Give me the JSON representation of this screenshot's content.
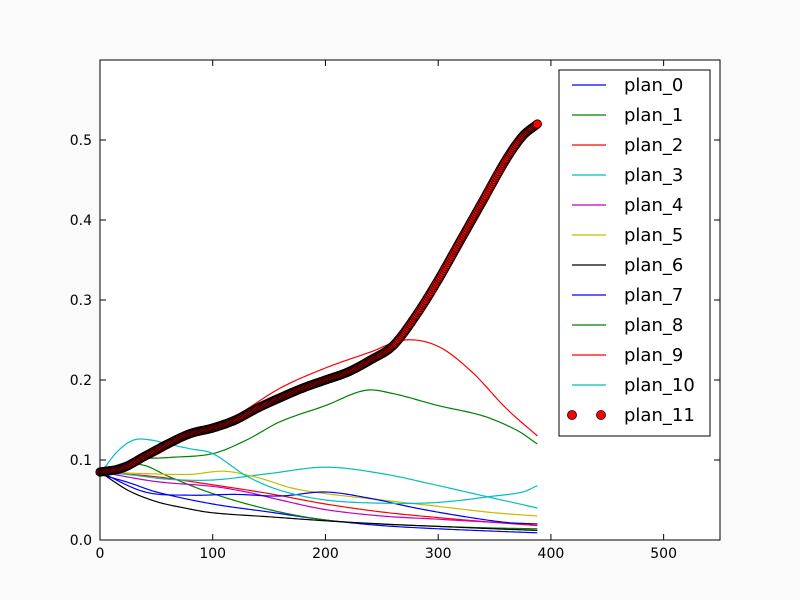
{
  "chart_data": {
    "type": "line",
    "title": "",
    "xlabel": "",
    "ylabel": "",
    "xlim": [
      0,
      550
    ],
    "ylim": [
      0,
      0.6
    ],
    "x_ticks": [
      0,
      100,
      200,
      300,
      400,
      500
    ],
    "x_tick_labels": [
      "0",
      "100",
      "200",
      "300",
      "400",
      "500"
    ],
    "y_ticks": [
      0,
      0.1,
      0.2,
      0.3,
      0.4,
      0.5
    ],
    "y_tick_labels": [
      "0.0",
      "0.1",
      "0.2",
      "0.3",
      "0.4",
      "0.5"
    ],
    "grid": false,
    "legend_position": "top-right",
    "series": [
      {
        "name": "plan_0",
        "color": "#0000ff",
        "style": "line",
        "points": [
          [
            0,
            0.082
          ],
          [
            25,
            0.072
          ],
          [
            50,
            0.06
          ],
          [
            100,
            0.045
          ],
          [
            150,
            0.035
          ],
          [
            200,
            0.025
          ],
          [
            250,
            0.018
          ],
          [
            300,
            0.014
          ],
          [
            350,
            0.011
          ],
          [
            388,
            0.009
          ]
        ]
      },
      {
        "name": "plan_1",
        "color": "#008000",
        "style": "line",
        "points": [
          [
            0,
            0.085
          ],
          [
            20,
            0.095
          ],
          [
            40,
            0.093
          ],
          [
            60,
            0.08
          ],
          [
            100,
            0.058
          ],
          [
            150,
            0.038
          ],
          [
            200,
            0.025
          ],
          [
            250,
            0.02
          ],
          [
            300,
            0.017
          ],
          [
            350,
            0.015
          ],
          [
            388,
            0.014
          ]
        ]
      },
      {
        "name": "plan_2",
        "color": "#ff0000",
        "style": "line",
        "points": [
          [
            0,
            0.085
          ],
          [
            50,
            0.079
          ],
          [
            100,
            0.069
          ],
          [
            150,
            0.058
          ],
          [
            200,
            0.045
          ],
          [
            250,
            0.035
          ],
          [
            300,
            0.028
          ],
          [
            350,
            0.022
          ],
          [
            388,
            0.018
          ]
        ]
      },
      {
        "name": "plan_3",
        "color": "#00bfbf",
        "style": "line",
        "points": [
          [
            0,
            0.085
          ],
          [
            30,
            0.081
          ],
          [
            60,
            0.076
          ],
          [
            100,
            0.075
          ],
          [
            150,
            0.083
          ],
          [
            200,
            0.091
          ],
          [
            250,
            0.083
          ],
          [
            300,
            0.068
          ],
          [
            350,
            0.052
          ],
          [
            388,
            0.04
          ]
        ]
      },
      {
        "name": "plan_4",
        "color": "#bf00bf",
        "style": "line",
        "points": [
          [
            0,
            0.085
          ],
          [
            50,
            0.073
          ],
          [
            100,
            0.067
          ],
          [
            130,
            0.06
          ],
          [
            160,
            0.05
          ],
          [
            200,
            0.038
          ],
          [
            250,
            0.03
          ],
          [
            300,
            0.026
          ],
          [
            350,
            0.022
          ],
          [
            388,
            0.02
          ]
        ]
      },
      {
        "name": "plan_5",
        "color": "#bfbf00",
        "style": "line",
        "points": [
          [
            0,
            0.085
          ],
          [
            40,
            0.083
          ],
          [
            80,
            0.082
          ],
          [
            110,
            0.086
          ],
          [
            140,
            0.078
          ],
          [
            170,
            0.065
          ],
          [
            200,
            0.058
          ],
          [
            250,
            0.05
          ],
          [
            300,
            0.042
          ],
          [
            350,
            0.034
          ],
          [
            388,
            0.03
          ]
        ]
      },
      {
        "name": "plan_6",
        "color": "#000000",
        "style": "line",
        "points": [
          [
            0,
            0.085
          ],
          [
            25,
            0.062
          ],
          [
            50,
            0.048
          ],
          [
            75,
            0.04
          ],
          [
            100,
            0.034
          ],
          [
            150,
            0.029
          ],
          [
            200,
            0.024
          ],
          [
            250,
            0.02
          ],
          [
            300,
            0.017
          ],
          [
            350,
            0.014
          ],
          [
            388,
            0.012
          ]
        ]
      },
      {
        "name": "plan_7",
        "color": "#0000ff",
        "style": "line",
        "points": [
          [
            0,
            0.085
          ],
          [
            40,
            0.06
          ],
          [
            80,
            0.056
          ],
          [
            120,
            0.057
          ],
          [
            160,
            0.055
          ],
          [
            200,
            0.06
          ],
          [
            240,
            0.052
          ],
          [
            280,
            0.04
          ],
          [
            320,
            0.03
          ],
          [
            360,
            0.022
          ],
          [
            388,
            0.02
          ]
        ]
      },
      {
        "name": "plan_8",
        "color": "#008000",
        "style": "line",
        "points": [
          [
            0,
            0.085
          ],
          [
            30,
            0.1
          ],
          [
            60,
            0.103
          ],
          [
            100,
            0.108
          ],
          [
            130,
            0.125
          ],
          [
            160,
            0.148
          ],
          [
            200,
            0.168
          ],
          [
            235,
            0.187
          ],
          [
            260,
            0.183
          ],
          [
            300,
            0.168
          ],
          [
            340,
            0.155
          ],
          [
            370,
            0.137
          ],
          [
            388,
            0.12
          ]
        ]
      },
      {
        "name": "plan_9",
        "color": "#ff0000",
        "style": "line",
        "points": [
          [
            0,
            0.085
          ],
          [
            40,
            0.1
          ],
          [
            80,
            0.13
          ],
          [
            120,
            0.155
          ],
          [
            160,
            0.19
          ],
          [
            200,
            0.215
          ],
          [
            240,
            0.235
          ],
          [
            270,
            0.25
          ],
          [
            300,
            0.242
          ],
          [
            330,
            0.21
          ],
          [
            360,
            0.165
          ],
          [
            388,
            0.13
          ]
        ]
      },
      {
        "name": "plan_10",
        "color": "#00bfbf",
        "style": "line",
        "points": [
          [
            0,
            0.082
          ],
          [
            15,
            0.11
          ],
          [
            30,
            0.125
          ],
          [
            45,
            0.125
          ],
          [
            60,
            0.12
          ],
          [
            80,
            0.114
          ],
          [
            100,
            0.108
          ],
          [
            130,
            0.08
          ],
          [
            160,
            0.062
          ],
          [
            200,
            0.05
          ],
          [
            250,
            0.046
          ],
          [
            300,
            0.047
          ],
          [
            350,
            0.055
          ],
          [
            375,
            0.06
          ],
          [
            388,
            0.068
          ]
        ]
      },
      {
        "name": "plan_11",
        "color": "#ff0000",
        "style": "markers",
        "points": [
          [
            0,
            0.085
          ],
          [
            20,
            0.09
          ],
          [
            40,
            0.105
          ],
          [
            60,
            0.12
          ],
          [
            80,
            0.133
          ],
          [
            100,
            0.14
          ],
          [
            120,
            0.15
          ],
          [
            140,
            0.165
          ],
          [
            160,
            0.178
          ],
          [
            180,
            0.19
          ],
          [
            200,
            0.2
          ],
          [
            220,
            0.21
          ],
          [
            240,
            0.225
          ],
          [
            260,
            0.243
          ],
          [
            280,
            0.28
          ],
          [
            300,
            0.325
          ],
          [
            320,
            0.375
          ],
          [
            340,
            0.425
          ],
          [
            360,
            0.475
          ],
          [
            375,
            0.505
          ],
          [
            388,
            0.52
          ]
        ]
      }
    ]
  }
}
